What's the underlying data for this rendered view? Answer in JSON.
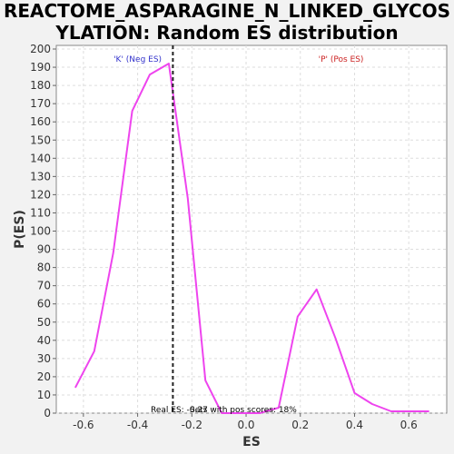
{
  "chart_data": {
    "type": "line",
    "title_lines": [
      "REACTOME_ASPARAGINE_N_LINKED_GLYCOS",
      "YLATION: Random ES distribution"
    ],
    "xlabel": "ES",
    "ylabel": "P(ES)",
    "xlim": [
      -0.7,
      0.74
    ],
    "ylim": [
      0,
      202
    ],
    "x_ticks": [
      -0.6,
      -0.4,
      -0.2,
      0.0,
      0.2,
      0.4,
      0.6
    ],
    "x_tick_labels": [
      "-0.6",
      "-0.4",
      "-0.2",
      "0.0",
      "0.2",
      "0.4",
      "0.6"
    ],
    "y_ticks": [
      0,
      10,
      20,
      30,
      40,
      50,
      60,
      70,
      80,
      90,
      100,
      110,
      120,
      130,
      140,
      150,
      160,
      170,
      180,
      190,
      200
    ],
    "grid": true,
    "series": [
      {
        "color": "#ee44ee",
        "x": [
          -0.63,
          -0.56,
          -0.49,
          -0.42,
          -0.355,
          -0.285,
          -0.215,
          -0.15,
          -0.09,
          -0.02,
          0.05,
          0.12,
          0.19,
          0.26,
          0.33,
          0.4,
          0.465,
          0.535,
          0.605,
          0.675
        ],
        "y": [
          14,
          34,
          88,
          166,
          186,
          192,
          118,
          18,
          0,
          0,
          0,
          3,
          53,
          68,
          41,
          11,
          5,
          1,
          1,
          1
        ]
      }
    ],
    "real_es": -0.27,
    "annotations": {
      "neg_label": "'K' (Neg ES)",
      "pos_label": "'P' (Pos ES)",
      "real_es_text": "Real ES: -0.27",
      "pos_scores_text": "Sets with pos scores: 18%"
    },
    "colors": {
      "neg": "#3333cc",
      "pos": "#cc2222",
      "curve": "#ee44ee"
    }
  }
}
